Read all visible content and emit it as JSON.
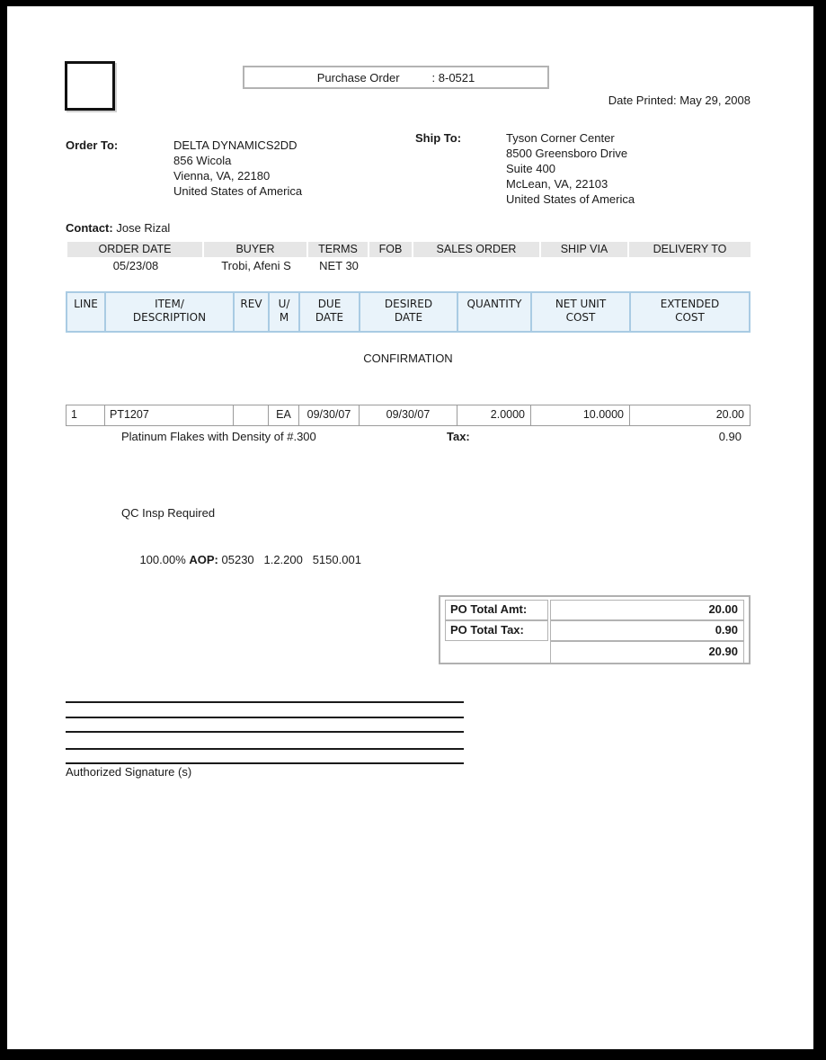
{
  "header": {
    "po_box_label": "Purchase Order",
    "po_number": ": 8-0521",
    "date_printed": "Date Printed: May 29, 2008"
  },
  "order_to": {
    "label": "Order To:",
    "lines": [
      "DELTA DYNAMICS2DD",
      "856 Wicola",
      "Vienna, VA, 22180",
      "United States of America"
    ]
  },
  "ship_to": {
    "label": "Ship To:",
    "lines": [
      "Tyson Corner Center",
      "8500 Greensboro Drive",
      "Suite 400",
      "McLean, VA, 22103",
      "United States of America"
    ]
  },
  "contact": {
    "label": "Contact:",
    "name": "Jose Rizal"
  },
  "order_info": {
    "headers": [
      "ORDER DATE",
      "BUYER",
      "TERMS",
      "FOB",
      "SALES ORDER",
      "SHIP VIA",
      "DELIVERY TO"
    ],
    "order_date": "05/23/08",
    "buyer": "Trobi, Afeni S",
    "terms": "NET 30"
  },
  "items_table": {
    "headers": [
      "LINE",
      "ITEM/\nDESCRIPTION",
      "REV",
      "U/\nM",
      "DUE\nDATE",
      "DESIRED\nDATE",
      "QUANTITY",
      "NET UNIT\nCOST",
      "EXTENDED\nCOST"
    ],
    "confirmation": "CONFIRMATION",
    "row": {
      "line": "1",
      "item": "PT1207",
      "rev": "",
      "um": "EA",
      "due_date": "09/30/07",
      "desired_date": "09/30/07",
      "quantity": "2.0000",
      "net_unit_cost": "10.0000",
      "extended_cost": "20.00",
      "description": "Platinum Flakes with Density of #.300",
      "tax_label": "Tax:",
      "tax_value": "0.90",
      "qc_note": "QC Insp Required",
      "aop_percent": "100.00% ",
      "aop_label": "AOP:",
      "aop_codes": " 05230   1.2.200   5150.001"
    }
  },
  "totals": {
    "amt_label": "PO Total Amt:",
    "amt_value": "20.00",
    "tax_label": "PO Total Tax:",
    "tax_value": "0.90",
    "grand_total": "20.90"
  },
  "signature": {
    "label": "Authorized Signature (s)"
  }
}
